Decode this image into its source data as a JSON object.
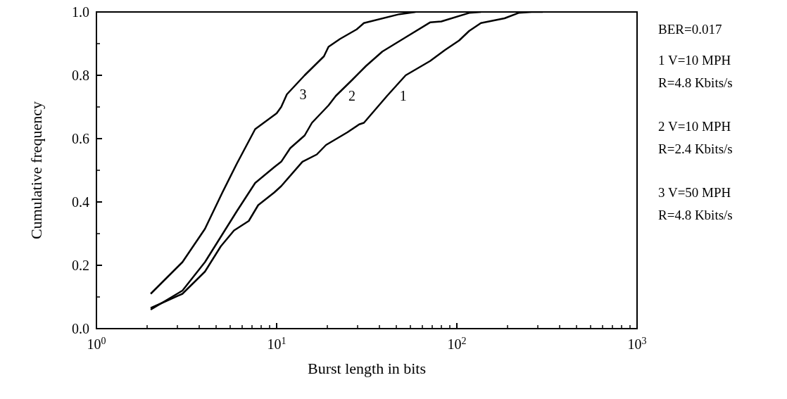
{
  "chart_data": {
    "type": "line",
    "xlabel": "Burst length in bits",
    "ylabel": "Cumulative frequency",
    "log": "x",
    "grid": false,
    "marker": "none",
    "line_style": "solid",
    "xlim": [
      1,
      1000
    ],
    "xticks": [
      {
        "value": 1,
        "label": "10$^{0}$"
      },
      {
        "value": 10,
        "label": "10$^{1}$"
      },
      {
        "value": 100,
        "label": "10$^{2}$"
      },
      {
        "value": 1000,
        "label": "10$^{3}$"
      }
    ],
    "ylim": [
      0,
      1
    ],
    "yticks": [
      {
        "value": 0,
        "label": "0.0"
      },
      0.2,
      0.4,
      0.6,
      0.8,
      {
        "value": 1,
        "label": "1.0"
      }
    ],
    "series": [
      {
        "name": "1",
        "color": "#000000",
        "x": [
          2,
          3,
          4,
          4.9,
          5.8,
          7,
          7.9,
          9.7,
          10.6,
          13.9,
          16.7,
          18.8,
          24.7,
          28.7,
          30.5,
          41,
          52,
          71,
          86,
          103,
          117,
          136,
          184,
          220,
          260,
          300
        ],
        "values": [
          0.065,
          0.11,
          0.18,
          0.26,
          0.31,
          0.34,
          0.39,
          0.43,
          0.45,
          0.527,
          0.55,
          0.58,
          0.62,
          0.645,
          0.65,
          0.735,
          0.8,
          0.845,
          0.88,
          0.91,
          0.94,
          0.965,
          0.98,
          0.997,
          1.0,
          1.0
        ]
      },
      {
        "name": "2",
        "color": "#000000",
        "x": [
          2,
          3,
          4,
          4.9,
          6,
          7.6,
          9.7,
          10.6,
          11.9,
          14.3,
          15.7,
          19.4,
          21.3,
          26.2,
          31.4,
          38.6,
          52,
          71,
          82,
          117,
          136
        ],
        "values": [
          0.06,
          0.12,
          0.21,
          0.29,
          0.37,
          0.46,
          0.51,
          0.527,
          0.57,
          0.61,
          0.65,
          0.705,
          0.735,
          0.785,
          0.83,
          0.875,
          0.92,
          0.967,
          0.97,
          0.997,
          1.0
        ]
      },
      {
        "name": "3",
        "color": "#000000",
        "x": [
          2,
          3,
          4,
          5,
          6,
          7.6,
          10,
          10.6,
          11.4,
          14.3,
          18.3,
          19.4,
          22.5,
          27.8,
          30.5,
          48,
          59
        ],
        "values": [
          0.11,
          0.21,
          0.315,
          0.43,
          0.52,
          0.63,
          0.68,
          0.7,
          0.74,
          0.8,
          0.86,
          0.89,
          0.915,
          0.945,
          0.965,
          0.993,
          1.0
        ]
      }
    ],
    "annotations": [
      "BER=0.017",
      "1 V=10 MPH\nR=4.8 Kbits/s",
      "2 V=10 MPH\nR=2.4 Kbits/s",
      "3 V=50 MPH\nR=4.8 Kbits/s"
    ]
  }
}
